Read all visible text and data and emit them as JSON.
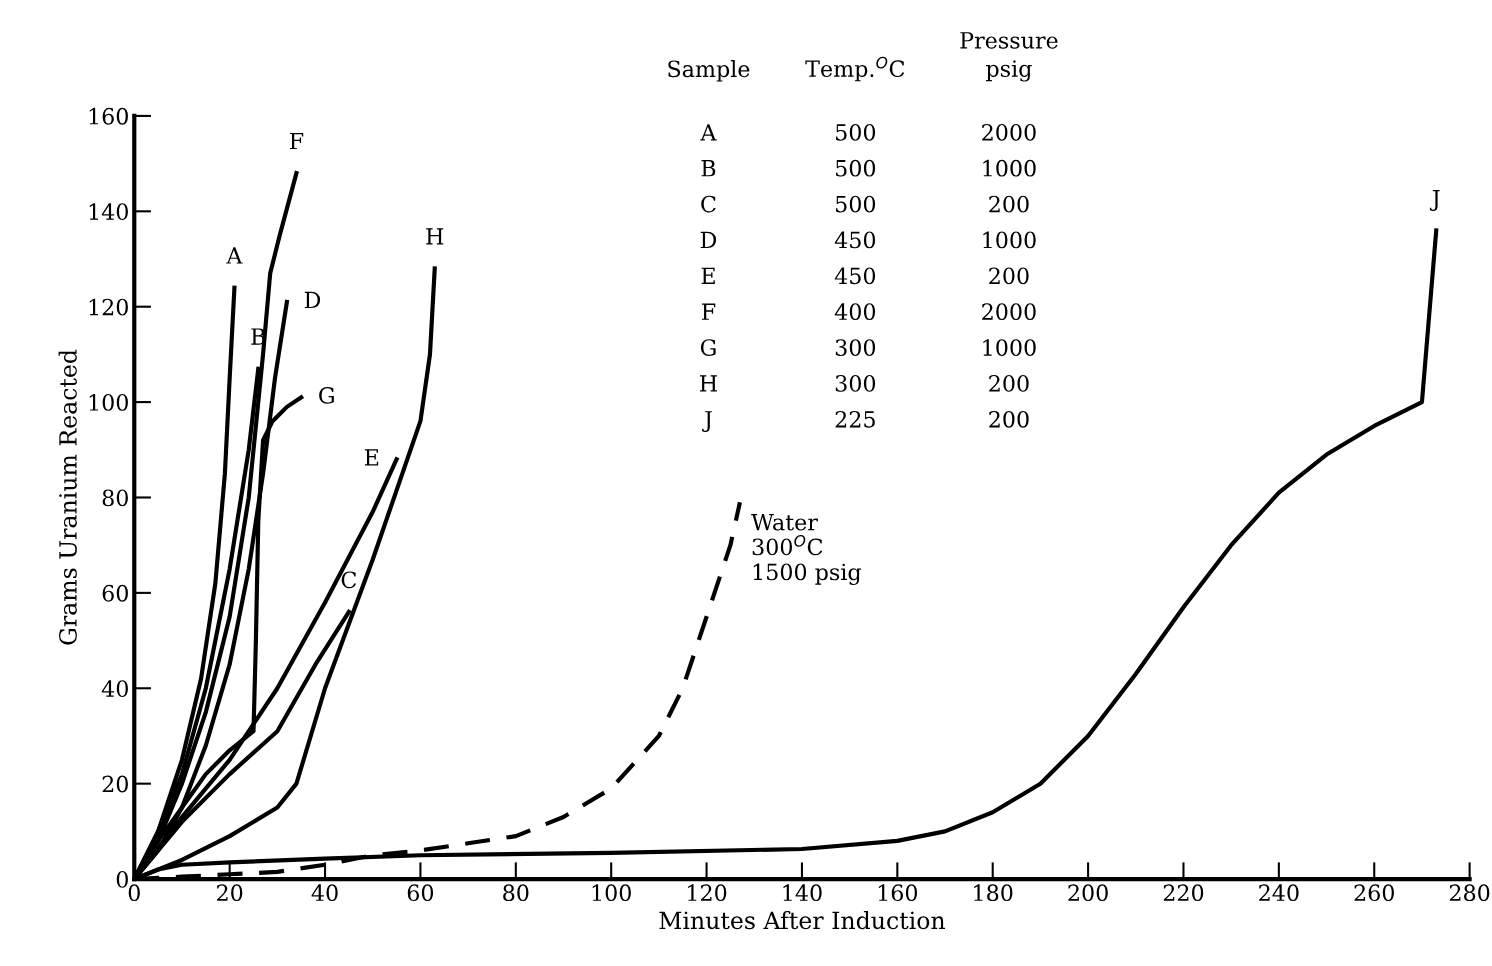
{
  "chart_data": {
    "type": "line",
    "xlabel": "Minutes After Induction",
    "ylabel": "Grams Uranium Reacted",
    "xlim": [
      0,
      280
    ],
    "ylim": [
      0,
      160
    ],
    "xticks": [
      0,
      20,
      40,
      60,
      80,
      100,
      120,
      140,
      160,
      180,
      200,
      220,
      240,
      260,
      280
    ],
    "yticks": [
      0,
      20,
      40,
      60,
      80,
      100,
      120,
      140,
      160
    ],
    "grid": false,
    "legend": false,
    "marker": "none",
    "annotations": [
      "Sample",
      "Temp.$^{O}$C",
      "Pressure\npsig",
      "A",
      "500",
      "2000",
      "B",
      "500",
      "1000",
      "C",
      "500",
      "200",
      "D",
      "450",
      "1000",
      "E",
      "450",
      "200",
      "F",
      "400",
      "2000",
      "G",
      "300",
      "1000",
      "H",
      "300",
      "200",
      "J",
      "225",
      "200"
    ],
    "series": [
      {
        "name": "A",
        "color": "#000000",
        "line_style": "solid",
        "x": [
          0,
          5,
          10,
          14,
          17,
          19,
          20,
          21
        ],
        "values": [
          0,
          10,
          25,
          42,
          62,
          85,
          105,
          124
        ]
      },
      {
        "name": "B",
        "color": "#000000",
        "line_style": "solid",
        "x": [
          0,
          5,
          10,
          15,
          20,
          24,
          26
        ],
        "values": [
          0,
          10,
          22,
          40,
          65,
          90,
          107
        ]
      },
      {
        "name": "C",
        "color": "#000000",
        "line_style": "solid",
        "x": [
          0,
          10,
          20,
          30,
          38,
          45
        ],
        "values": [
          0,
          12,
          22,
          31,
          45,
          56
        ]
      },
      {
        "name": "D",
        "color": "#000000",
        "line_style": "solid",
        "x": [
          0,
          5,
          10,
          15,
          20,
          24,
          27,
          29.5,
          32
        ],
        "values": [
          0,
          6,
          15,
          28,
          45,
          65,
          85,
          105,
          121
        ]
      },
      {
        "name": "E",
        "color": "#000000",
        "line_style": "solid",
        "x": [
          0,
          10,
          20,
          30,
          40,
          50,
          55
        ],
        "values": [
          0,
          13,
          25,
          40,
          58,
          77,
          88
        ]
      },
      {
        "name": "F",
        "color": "#000000",
        "line_style": "solid",
        "x": [
          0,
          5,
          10,
          15,
          20,
          24,
          27,
          28.5,
          30.5,
          34
        ],
        "values": [
          0,
          8,
          20,
          35,
          55,
          80,
          110,
          127,
          135,
          148
        ]
      },
      {
        "name": "G",
        "color": "#000000",
        "line_style": "solid",
        "x": [
          0,
          5,
          10,
          15,
          20,
          25,
          25.5,
          26,
          27,
          29,
          32,
          35
        ],
        "values": [
          0,
          8,
          15,
          22,
          27,
          31,
          50,
          75,
          92,
          96,
          99,
          101
        ]
      },
      {
        "name": "H",
        "color": "#000000",
        "line_style": "solid",
        "x": [
          0,
          10,
          20,
          30,
          34,
          40,
          50,
          60,
          62,
          63
        ],
        "values": [
          0,
          4,
          9,
          15,
          20,
          40,
          67,
          96,
          110,
          128
        ]
      },
      {
        "name": "J",
        "color": "#000000",
        "line_style": "solid",
        "x": [
          0,
          5,
          10,
          20,
          40,
          60,
          100,
          140,
          160,
          170,
          180,
          190,
          200,
          210,
          220,
          230,
          240,
          250,
          260,
          270,
          273
        ],
        "values": [
          0,
          2,
          3,
          3.5,
          4.3,
          5,
          5.5,
          6.3,
          8,
          10,
          14,
          20,
          30,
          43,
          57,
          70,
          81,
          89,
          95,
          100,
          136
        ]
      },
      {
        "name": "Water\n300$^{O}$C\n1500 psig",
        "color": "#000000",
        "line_style": "dashed",
        "x": [
          0,
          10,
          20,
          30,
          40,
          50,
          60,
          70,
          80,
          90,
          100,
          110,
          115,
          120,
          125,
          127
        ],
        "values": [
          0,
          0.5,
          1,
          1.5,
          3,
          5,
          6,
          7.5,
          9,
          13,
          19,
          30,
          40,
          55,
          70,
          79
        ]
      }
    ]
  }
}
